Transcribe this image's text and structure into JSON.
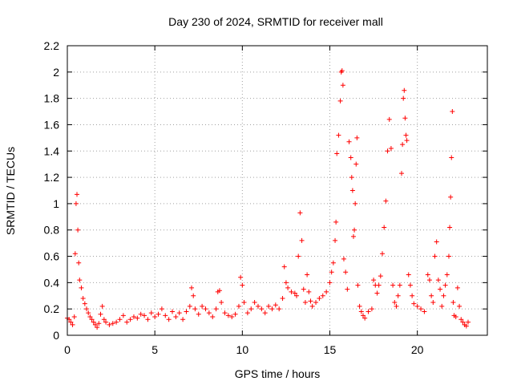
{
  "chart_data": {
    "type": "scatter",
    "title": "Day 230 of 2024, SRMTID for receiver mall",
    "xlabel": "GPS time / hours",
    "ylabel": "SRMTID / TECUs",
    "xlim": [
      0,
      24
    ],
    "ylim": [
      0,
      2.2
    ],
    "xticks": [
      0,
      5,
      10,
      15,
      20
    ],
    "xtick_labels": [
      "0",
      "5",
      "10",
      "15",
      "20"
    ],
    "yticks": [
      0,
      0.2,
      0.4,
      0.6,
      0.8,
      1,
      1.2,
      1.4,
      1.6,
      1.8,
      2,
      2.2
    ],
    "ytick_labels": [
      "0",
      "0.2",
      "0.4",
      "0.6",
      "0.8",
      "1",
      "1.2",
      "1.4",
      "1.6",
      "1.8",
      "2",
      "2.2"
    ],
    "grid": true,
    "marker": "+",
    "series": [
      {
        "name": "mall",
        "color": "#ff0000",
        "points": [
          [
            0.0,
            0.13
          ],
          [
            0.1,
            0.12
          ],
          [
            0.2,
            0.1
          ],
          [
            0.3,
            0.08
          ],
          [
            0.4,
            0.14
          ],
          [
            0.45,
            0.62
          ],
          [
            0.5,
            1.0
          ],
          [
            0.55,
            1.07
          ],
          [
            0.6,
            0.8
          ],
          [
            0.65,
            0.55
          ],
          [
            0.7,
            0.42
          ],
          [
            0.8,
            0.36
          ],
          [
            0.9,
            0.28
          ],
          [
            1.0,
            0.24
          ],
          [
            1.1,
            0.2
          ],
          [
            1.2,
            0.17
          ],
          [
            1.3,
            0.14
          ],
          [
            1.4,
            0.12
          ],
          [
            1.5,
            0.1
          ],
          [
            1.6,
            0.08
          ],
          [
            1.7,
            0.06
          ],
          [
            1.8,
            0.09
          ],
          [
            1.9,
            0.16
          ],
          [
            2.0,
            0.22
          ],
          [
            2.1,
            0.12
          ],
          [
            2.2,
            0.1
          ],
          [
            2.4,
            0.08
          ],
          [
            2.6,
            0.09
          ],
          [
            2.8,
            0.1
          ],
          [
            3.0,
            0.12
          ],
          [
            3.2,
            0.15
          ],
          [
            3.4,
            0.1
          ],
          [
            3.6,
            0.12
          ],
          [
            3.8,
            0.14
          ],
          [
            4.0,
            0.13
          ],
          [
            4.2,
            0.16
          ],
          [
            4.4,
            0.15
          ],
          [
            4.6,
            0.12
          ],
          [
            4.8,
            0.17
          ],
          [
            5.0,
            0.14
          ],
          [
            5.2,
            0.16
          ],
          [
            5.4,
            0.2
          ],
          [
            5.6,
            0.15
          ],
          [
            5.8,
            0.12
          ],
          [
            6.0,
            0.18
          ],
          [
            6.2,
            0.14
          ],
          [
            6.4,
            0.17
          ],
          [
            6.6,
            0.12
          ],
          [
            6.8,
            0.18
          ],
          [
            7.0,
            0.22
          ],
          [
            7.1,
            0.36
          ],
          [
            7.2,
            0.3
          ],
          [
            7.3,
            0.2
          ],
          [
            7.5,
            0.16
          ],
          [
            7.7,
            0.22
          ],
          [
            7.9,
            0.2
          ],
          [
            8.1,
            0.17
          ],
          [
            8.3,
            0.14
          ],
          [
            8.5,
            0.2
          ],
          [
            8.6,
            0.33
          ],
          [
            8.7,
            0.34
          ],
          [
            8.8,
            0.25
          ],
          [
            9.0,
            0.17
          ],
          [
            9.2,
            0.15
          ],
          [
            9.4,
            0.14
          ],
          [
            9.6,
            0.16
          ],
          [
            9.8,
            0.22
          ],
          [
            9.9,
            0.44
          ],
          [
            10.0,
            0.38
          ],
          [
            10.1,
            0.25
          ],
          [
            10.3,
            0.17
          ],
          [
            10.5,
            0.2
          ],
          [
            10.7,
            0.25
          ],
          [
            10.9,
            0.22
          ],
          [
            11.1,
            0.2
          ],
          [
            11.3,
            0.17
          ],
          [
            11.5,
            0.22
          ],
          [
            11.7,
            0.2
          ],
          [
            11.9,
            0.23
          ],
          [
            12.1,
            0.2
          ],
          [
            12.3,
            0.28
          ],
          [
            12.4,
            0.52
          ],
          [
            12.5,
            0.4
          ],
          [
            12.6,
            0.36
          ],
          [
            12.8,
            0.33
          ],
          [
            13.0,
            0.32
          ],
          [
            13.1,
            0.3
          ],
          [
            13.2,
            0.6
          ],
          [
            13.3,
            0.93
          ],
          [
            13.4,
            0.72
          ],
          [
            13.5,
            0.35
          ],
          [
            13.6,
            0.25
          ],
          [
            13.7,
            0.46
          ],
          [
            13.8,
            0.33
          ],
          [
            13.9,
            0.26
          ],
          [
            14.0,
            0.22
          ],
          [
            14.2,
            0.25
          ],
          [
            14.4,
            0.28
          ],
          [
            14.6,
            0.3
          ],
          [
            14.8,
            0.33
          ],
          [
            15.0,
            0.4
          ],
          [
            15.1,
            0.48
          ],
          [
            15.2,
            0.55
          ],
          [
            15.3,
            0.72
          ],
          [
            15.35,
            0.86
          ],
          [
            15.4,
            1.38
          ],
          [
            15.5,
            1.52
          ],
          [
            15.6,
            1.78
          ],
          [
            15.65,
            2.0
          ],
          [
            15.7,
            2.01
          ],
          [
            15.75,
            1.9
          ],
          [
            15.8,
            0.58
          ],
          [
            15.9,
            0.48
          ],
          [
            16.0,
            0.35
          ],
          [
            16.1,
            1.47
          ],
          [
            16.2,
            1.35
          ],
          [
            16.25,
            1.2
          ],
          [
            16.3,
            1.1
          ],
          [
            16.35,
            0.75
          ],
          [
            16.4,
            0.8
          ],
          [
            16.45,
            1.0
          ],
          [
            16.5,
            1.3
          ],
          [
            16.55,
            1.5
          ],
          [
            16.6,
            0.38
          ],
          [
            16.7,
            0.22
          ],
          [
            16.8,
            0.18
          ],
          [
            16.9,
            0.15
          ],
          [
            17.0,
            0.13
          ],
          [
            17.2,
            0.18
          ],
          [
            17.4,
            0.2
          ],
          [
            17.5,
            0.42
          ],
          [
            17.6,
            0.38
          ],
          [
            17.7,
            0.32
          ],
          [
            17.8,
            0.38
          ],
          [
            17.9,
            0.45
          ],
          [
            18.0,
            0.62
          ],
          [
            18.1,
            0.82
          ],
          [
            18.2,
            1.02
          ],
          [
            18.3,
            1.4
          ],
          [
            18.4,
            1.64
          ],
          [
            18.5,
            1.42
          ],
          [
            18.6,
            0.38
          ],
          [
            18.7,
            0.25
          ],
          [
            18.8,
            0.22
          ],
          [
            18.9,
            0.3
          ],
          [
            19.0,
            0.38
          ],
          [
            19.1,
            1.23
          ],
          [
            19.15,
            1.45
          ],
          [
            19.2,
            1.8
          ],
          [
            19.25,
            1.86
          ],
          [
            19.3,
            1.65
          ],
          [
            19.35,
            1.52
          ],
          [
            19.4,
            1.48
          ],
          [
            19.5,
            0.46
          ],
          [
            19.6,
            0.38
          ],
          [
            19.7,
            0.3
          ],
          [
            19.8,
            0.24
          ],
          [
            20.0,
            0.22
          ],
          [
            20.2,
            0.2
          ],
          [
            20.4,
            0.18
          ],
          [
            20.6,
            0.46
          ],
          [
            20.7,
            0.42
          ],
          [
            20.8,
            0.3
          ],
          [
            20.9,
            0.25
          ],
          [
            21.0,
            0.6
          ],
          [
            21.1,
            0.71
          ],
          [
            21.2,
            0.42
          ],
          [
            21.3,
            0.35
          ],
          [
            21.4,
            0.22
          ],
          [
            21.5,
            0.3
          ],
          [
            21.6,
            0.38
          ],
          [
            21.7,
            0.46
          ],
          [
            21.8,
            0.6
          ],
          [
            21.85,
            0.82
          ],
          [
            21.9,
            1.05
          ],
          [
            21.95,
            1.35
          ],
          [
            22.0,
            1.7
          ],
          [
            22.05,
            0.25
          ],
          [
            22.1,
            0.15
          ],
          [
            22.2,
            0.14
          ],
          [
            22.3,
            0.36
          ],
          [
            22.4,
            0.22
          ],
          [
            22.5,
            0.12
          ],
          [
            22.6,
            0.1
          ],
          [
            22.7,
            0.08
          ],
          [
            22.8,
            0.07
          ],
          [
            22.9,
            0.1
          ]
        ]
      }
    ]
  }
}
